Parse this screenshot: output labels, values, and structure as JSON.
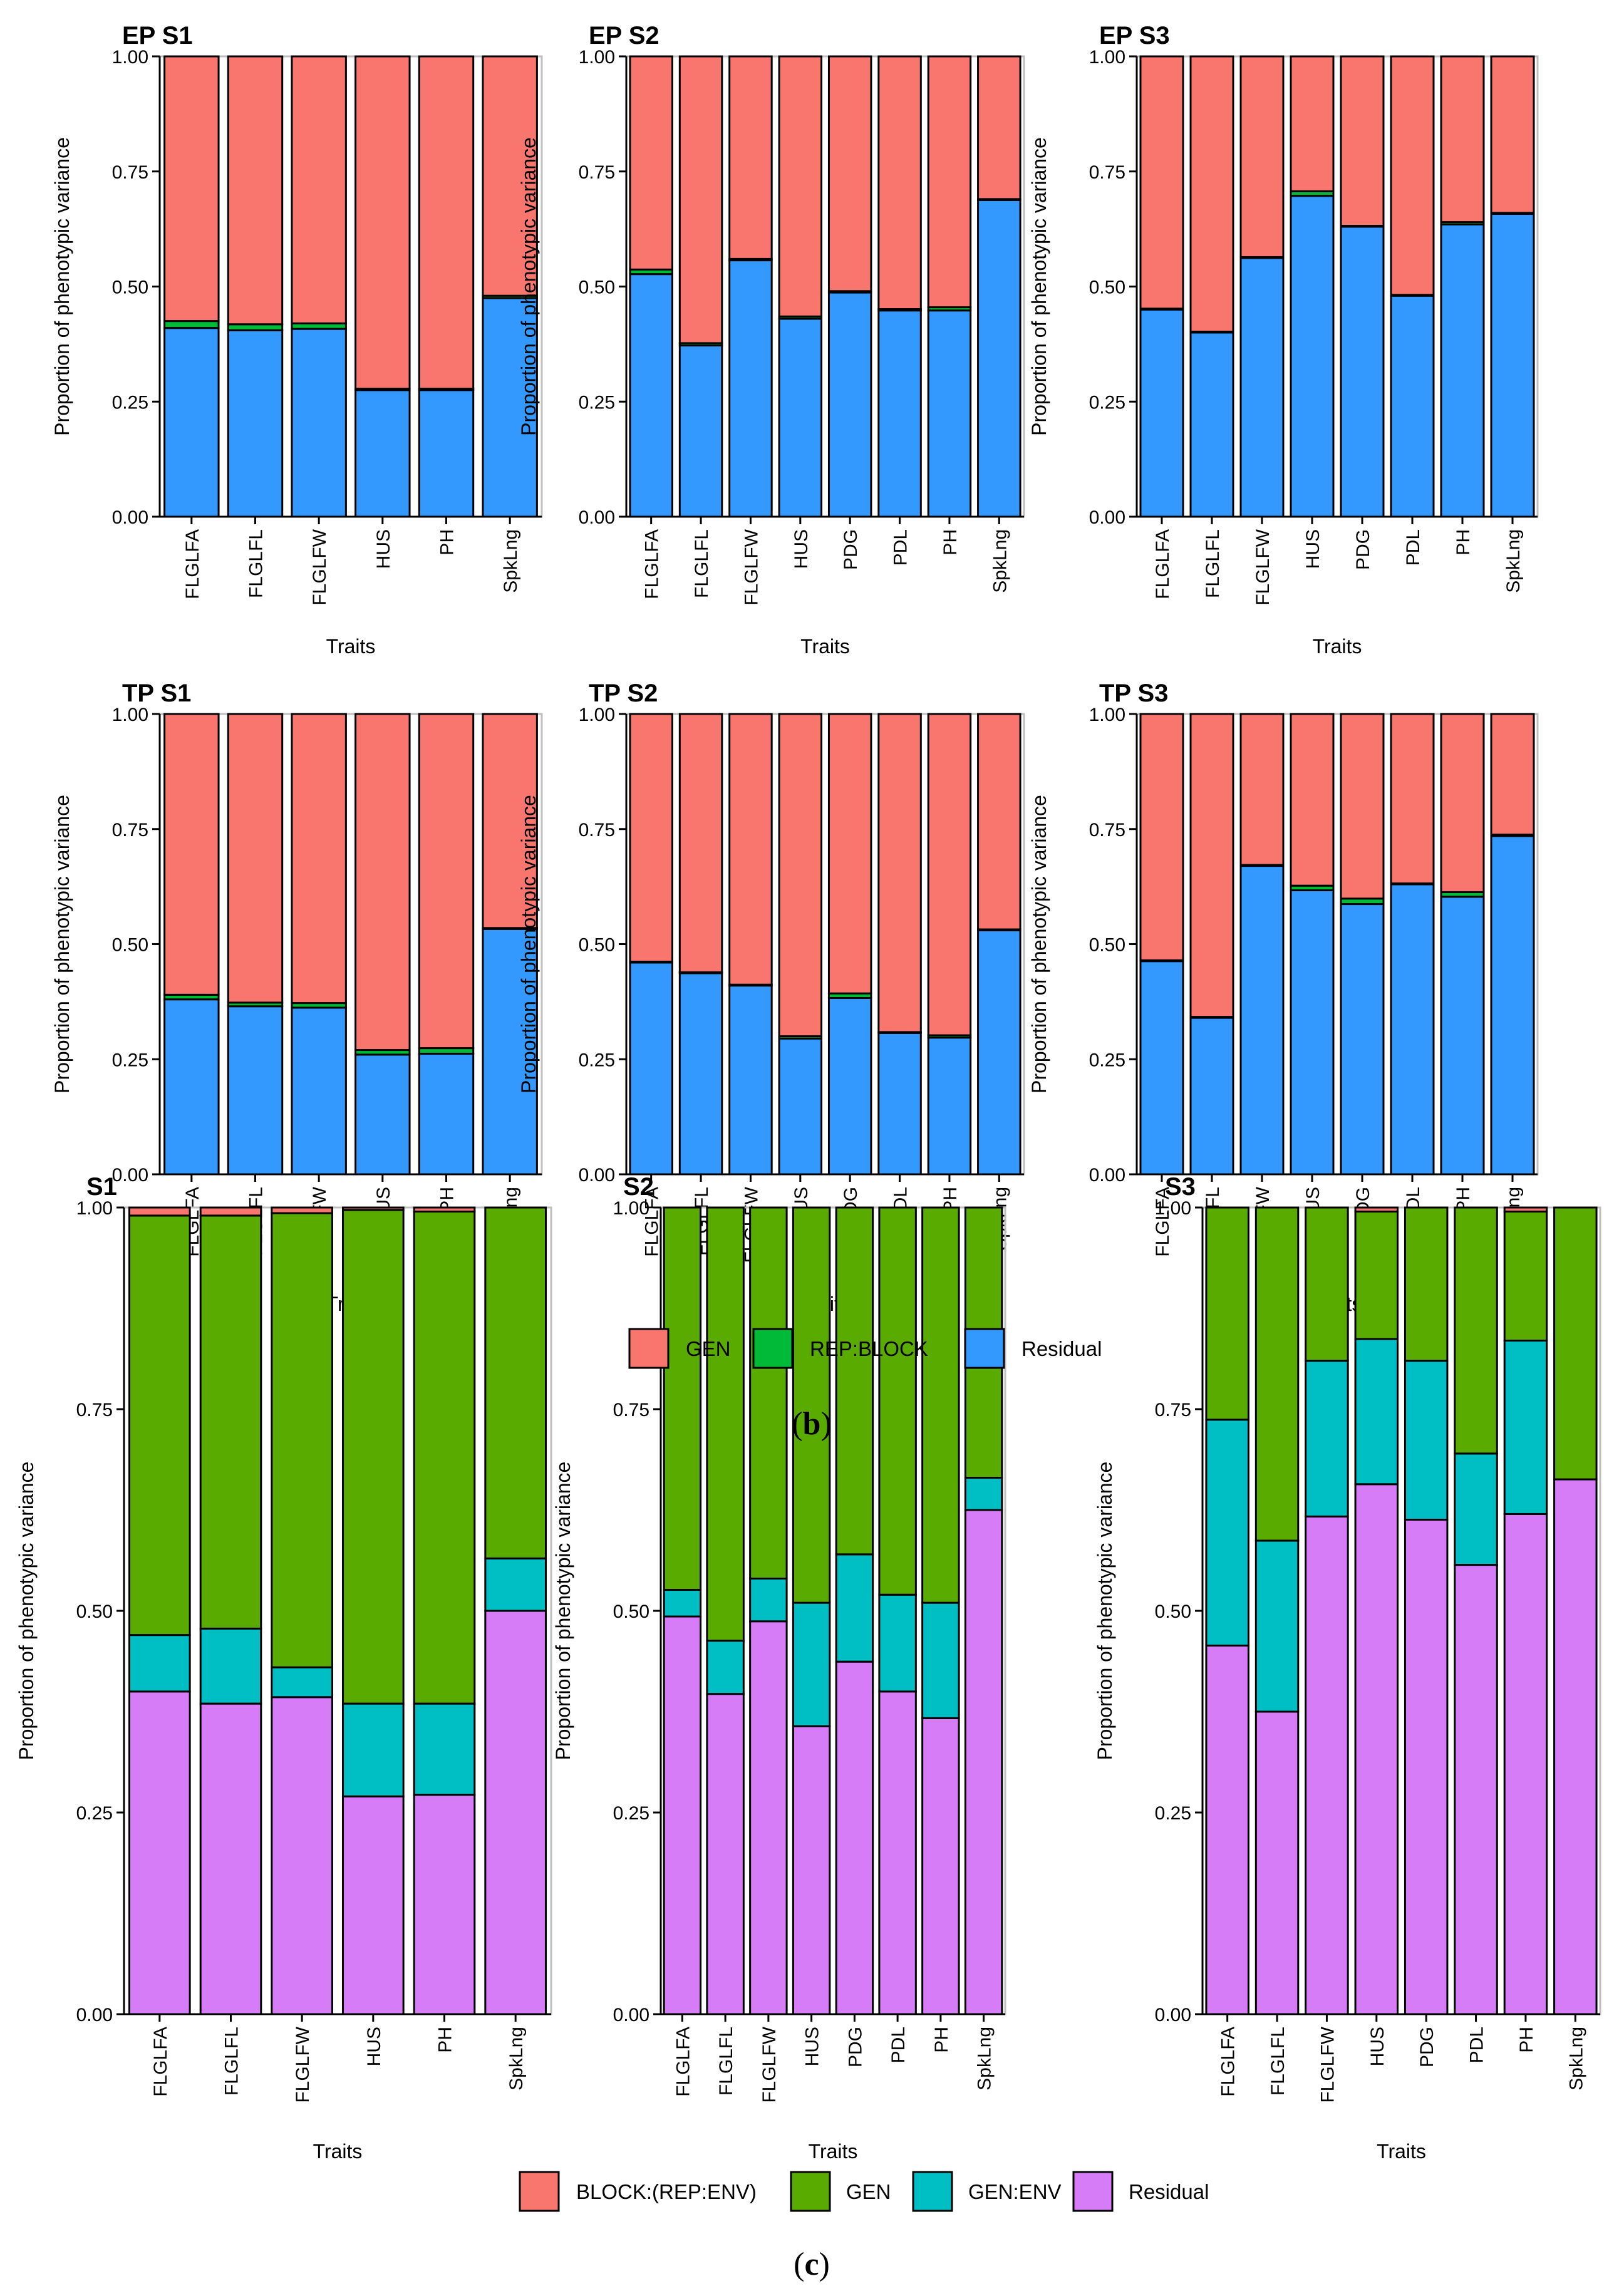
{
  "chart_data": [
    {
      "type": "bar",
      "stacked": true,
      "title": "EP S1",
      "xlabel": "Traits",
      "ylabel": "Proportion of phenotypic variance",
      "ylim": [
        0,
        1
      ],
      "yticks": [
        "0.00",
        "0.25",
        "0.50",
        "0.75",
        "1.00"
      ],
      "categories": [
        "FLGLFA",
        "FLGLFL",
        "FLGLFW",
        "HUS",
        "PH",
        "SpkLng"
      ],
      "series": [
        {
          "name": "Residual",
          "values": [
            0.41,
            0.405,
            0.408,
            0.275,
            0.275,
            0.475
          ]
        },
        {
          "name": "REP:BLOCK",
          "values": [
            0.015,
            0.013,
            0.012,
            0.003,
            0.003,
            0.005
          ]
        },
        {
          "name": "GEN",
          "values": [
            0.575,
            0.582,
            0.58,
            0.722,
            0.722,
            0.52
          ]
        }
      ]
    },
    {
      "type": "bar",
      "stacked": true,
      "title": "EP S2",
      "xlabel": "Traits",
      "ylabel": "Proportion of phenotypic variance",
      "ylim": [
        0,
        1
      ],
      "yticks": [
        "0.00",
        "0.25",
        "0.50",
        "0.75",
        "1.00"
      ],
      "categories": [
        "FLGLFA",
        "FLGLFL",
        "FLGLFW",
        "HUS",
        "PDG",
        "PDL",
        "PH",
        "SpkLng"
      ],
      "series": [
        {
          "name": "Residual",
          "values": [
            0.527,
            0.372,
            0.557,
            0.43,
            0.487,
            0.448,
            0.448,
            0.688
          ]
        },
        {
          "name": "REP:BLOCK",
          "values": [
            0.01,
            0.005,
            0.003,
            0.005,
            0.003,
            0.003,
            0.007,
            0.002
          ]
        },
        {
          "name": "GEN",
          "values": [
            0.463,
            0.623,
            0.44,
            0.565,
            0.51,
            0.549,
            0.545,
            0.31
          ]
        }
      ]
    },
    {
      "type": "bar",
      "stacked": true,
      "title": "EP S3",
      "xlabel": "Traits",
      "ylabel": "Proportion of phenotypic variance",
      "ylim": [
        0,
        1
      ],
      "yticks": [
        "0.00",
        "0.25",
        "0.50",
        "0.75",
        "1.00"
      ],
      "categories": [
        "FLGLFA",
        "FLGLFL",
        "FLGLFW",
        "HUS",
        "PDG",
        "PDL",
        "PH",
        "SpkLng"
      ],
      "series": [
        {
          "name": "Residual",
          "values": [
            0.45,
            0.4,
            0.562,
            0.697,
            0.63,
            0.48,
            0.635,
            0.658
          ]
        },
        {
          "name": "REP:BLOCK",
          "values": [
            0.002,
            0.002,
            0.002,
            0.01,
            0.002,
            0.002,
            0.005,
            0.002
          ]
        },
        {
          "name": "GEN",
          "values": [
            0.548,
            0.598,
            0.436,
            0.293,
            0.368,
            0.518,
            0.36,
            0.34
          ]
        }
      ]
    },
    {
      "type": "bar",
      "stacked": true,
      "title": "TP S1",
      "xlabel": "Traits",
      "ylabel": "Proportion of phenotypic variance",
      "ylim": [
        0,
        1
      ],
      "yticks": [
        "0.00",
        "0.25",
        "0.50",
        "0.75",
        "1.00"
      ],
      "categories": [
        "FLGLFA",
        "FLGLFL",
        "FLGLFW",
        "HUS",
        "PH",
        "SpkLng"
      ],
      "series": [
        {
          "name": "Residual",
          "values": [
            0.38,
            0.365,
            0.362,
            0.26,
            0.262,
            0.533
          ]
        },
        {
          "name": "REP:BLOCK",
          "values": [
            0.01,
            0.008,
            0.01,
            0.01,
            0.012,
            0.002
          ]
        },
        {
          "name": "GEN",
          "values": [
            0.61,
            0.627,
            0.628,
            0.73,
            0.726,
            0.465
          ]
        }
      ]
    },
    {
      "type": "bar",
      "stacked": true,
      "title": "TP S2",
      "xlabel": "Traits",
      "ylabel": "Proportion of phenotypic variance",
      "ylim": [
        0,
        1
      ],
      "yticks": [
        "0.00",
        "0.25",
        "0.50",
        "0.75",
        "1.00"
      ],
      "categories": [
        "FLGLFA",
        "FLGLFL",
        "FLGLFW",
        "HUS",
        "PDG",
        "PDL",
        "PH",
        "SpkLng"
      ],
      "series": [
        {
          "name": "Residual",
          "values": [
            0.46,
            0.437,
            0.41,
            0.295,
            0.383,
            0.307,
            0.297,
            0.53
          ]
        },
        {
          "name": "REP:BLOCK",
          "values": [
            0.002,
            0.002,
            0.002,
            0.005,
            0.01,
            0.002,
            0.005,
            0.002
          ]
        },
        {
          "name": "GEN",
          "values": [
            0.538,
            0.561,
            0.588,
            0.7,
            0.607,
            0.691,
            0.698,
            0.468
          ]
        }
      ]
    },
    {
      "type": "bar",
      "stacked": true,
      "title": "TP S3",
      "xlabel": "Traits",
      "ylabel": "Proportion of phenotypic variance",
      "ylim": [
        0,
        1
      ],
      "yticks": [
        "0.00",
        "0.25",
        "0.50",
        "0.75",
        "1.00"
      ],
      "categories": [
        "FLGLFA",
        "FLGLFL",
        "FLGLFW",
        "HUS",
        "PDG",
        "PDL",
        "PH",
        "SpkLng"
      ],
      "series": [
        {
          "name": "Residual",
          "values": [
            0.463,
            0.34,
            0.67,
            0.617,
            0.587,
            0.63,
            0.603,
            0.735
          ]
        },
        {
          "name": "REP:BLOCK",
          "values": [
            0.002,
            0.002,
            0.002,
            0.01,
            0.012,
            0.002,
            0.01,
            0.003
          ]
        },
        {
          "name": "GEN",
          "values": [
            0.535,
            0.658,
            0.328,
            0.373,
            0.401,
            0.368,
            0.387,
            0.262
          ]
        }
      ]
    },
    {
      "type": "bar",
      "stacked": true,
      "title": "S1",
      "xlabel": "Traits",
      "ylabel": "Proportion of phenotypic variance",
      "ylim": [
        0,
        1
      ],
      "yticks": [
        "0.00",
        "0.25",
        "0.50",
        "0.75",
        "1.00"
      ],
      "categories": [
        "FLGLFA",
        "FLGLFL",
        "FLGLFW",
        "HUS",
        "PH",
        "SpkLng"
      ],
      "series": [
        {
          "name": "Residual",
          "values": [
            0.4,
            0.385,
            0.393,
            0.27,
            0.272,
            0.5
          ]
        },
        {
          "name": "GEN:ENV",
          "values": [
            0.07,
            0.093,
            0.037,
            0.115,
            0.113,
            0.065
          ]
        },
        {
          "name": "GEN",
          "values": [
            0.52,
            0.512,
            0.563,
            0.612,
            0.61,
            0.435
          ]
        },
        {
          "name": "BLOCK:(REP:ENV)",
          "values": [
            0.01,
            0.01,
            0.007,
            0.003,
            0.005,
            0.0
          ]
        }
      ]
    },
    {
      "type": "bar",
      "stacked": true,
      "title": "S2",
      "xlabel": "Traits",
      "ylabel": "Proportion of phenotypic variance",
      "ylim": [
        0,
        1
      ],
      "yticks": [
        "0.00",
        "0.25",
        "0.50",
        "0.75",
        "1.00"
      ],
      "categories": [
        "FLGLFA",
        "FLGLFL",
        "FLGLFW",
        "HUS",
        "PDG",
        "PDL",
        "PH",
        "SpkLng"
      ],
      "series": [
        {
          "name": "Residual",
          "values": [
            0.493,
            0.397,
            0.487,
            0.357,
            0.437,
            0.4,
            0.367,
            0.625
          ]
        },
        {
          "name": "GEN:ENV",
          "values": [
            0.033,
            0.066,
            0.053,
            0.153,
            0.133,
            0.12,
            0.143,
            0.04
          ]
        },
        {
          "name": "GEN",
          "values": [
            0.474,
            0.537,
            0.46,
            0.49,
            0.43,
            0.48,
            0.49,
            0.335
          ]
        },
        {
          "name": "BLOCK:(REP:ENV)",
          "values": [
            0.0,
            0.0,
            0.0,
            0.0,
            0.0,
            0.0,
            0.0,
            0.0
          ]
        }
      ]
    },
    {
      "type": "bar",
      "stacked": true,
      "title": "S3",
      "xlabel": "Traits",
      "ylabel": "Proportion of phenotypic variance",
      "ylim": [
        0,
        1
      ],
      "yticks": [
        "0.00",
        "0.25",
        "0.50",
        "0.75",
        "1.00"
      ],
      "categories": [
        "FLGLFA",
        "FLGLFL",
        "FLGLFW",
        "HUS",
        "PDG",
        "PDL",
        "PH",
        "SpkLng"
      ],
      "series": [
        {
          "name": "Residual",
          "values": [
            0.457,
            0.375,
            0.617,
            0.657,
            0.613,
            0.557,
            0.62,
            0.663
          ]
        },
        {
          "name": "GEN:ENV",
          "values": [
            0.28,
            0.212,
            0.193,
            0.18,
            0.197,
            0.138,
            0.215,
            0.0
          ]
        },
        {
          "name": "GEN",
          "values": [
            0.263,
            0.413,
            0.19,
            0.158,
            0.19,
            0.305,
            0.16,
            0.337
          ]
        },
        {
          "name": "BLOCK:(REP:ENV)",
          "values": [
            0.0,
            0.0,
            0.0,
            0.005,
            0.0,
            0.0,
            0.005,
            0.0
          ]
        }
      ]
    }
  ],
  "legends": {
    "b": [
      {
        "name": "GEN",
        "color": "#f8766d"
      },
      {
        "name": "REP:BLOCK",
        "color": "#00ba38"
      },
      {
        "name": "Residual",
        "color": "#3399ff"
      }
    ],
    "c": [
      {
        "name": "BLOCK:(REP:ENV)",
        "color": "#f8766d"
      },
      {
        "name": "GEN",
        "color": "#5aab00"
      },
      {
        "name": "GEN:ENV",
        "color": "#00bfc4"
      },
      {
        "name": "Residual",
        "color": "#d67cf7"
      }
    ]
  },
  "series_colors": {
    "GEN_b": "#f8766d",
    "REP:BLOCK": "#00ba38",
    "Residual_b": "#3399ff",
    "BLOCK:(REP:ENV)": "#f8766d",
    "GEN_c": "#5aab00",
    "GEN:ENV": "#00bfc4",
    "Residual_c": "#d67cf7"
  },
  "captions": {
    "b": {
      "open": "(",
      "letter": "b",
      "close": ")"
    },
    "c": {
      "open": "(",
      "letter": "c",
      "close": ")"
    }
  }
}
